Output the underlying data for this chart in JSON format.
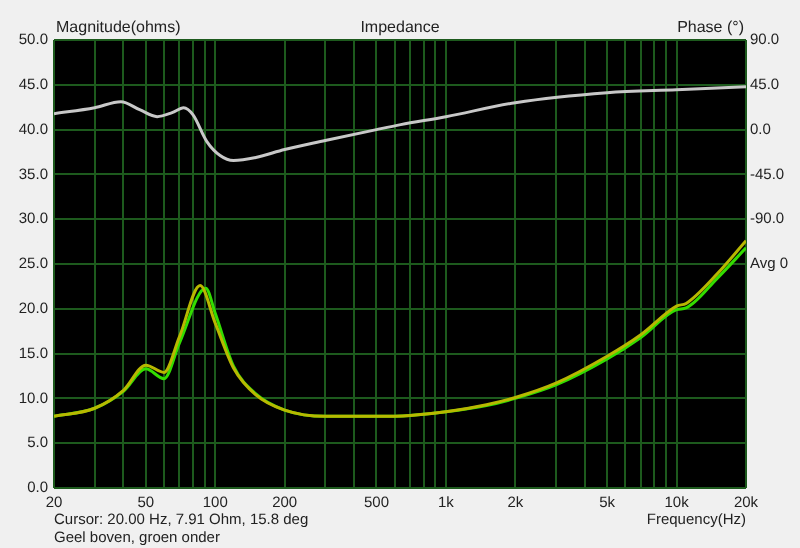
{
  "chart_data": {
    "type": "line",
    "title": "Impedance",
    "xlabel": "Frequency(Hz)",
    "ylabel": "Magnitude(ohms)",
    "y2label": "Phase (°)",
    "annotations": [
      "Cursor: 20.00 Hz, 7.91 Ohm, 15.8 deg",
      "Geel boven, groen onder"
    ],
    "log": "x",
    "grid": true,
    "xlim": [
      20,
      20000
    ],
    "xticks": [
      20,
      {
        "value": 30,
        "label": null
      },
      {
        "value": 40,
        "label": null
      },
      50,
      {
        "value": 60,
        "label": null
      },
      {
        "value": 70,
        "label": null
      },
      {
        "value": 80,
        "label": null
      },
      {
        "value": 90,
        "label": null
      },
      100,
      200,
      {
        "value": 300,
        "label": null
      },
      {
        "value": 400,
        "label": null
      },
      500,
      {
        "value": 600,
        "label": null
      },
      {
        "value": 700,
        "label": null
      },
      {
        "value": 800,
        "label": null
      },
      {
        "value": 900,
        "label": null
      },
      {
        "value": 1000,
        "label": "1k"
      },
      {
        "value": 2000,
        "label": "2k"
      },
      {
        "value": 3000,
        "label": null
      },
      {
        "value": 4000,
        "label": null
      },
      {
        "value": 5000,
        "label": "5k"
      },
      {
        "value": 6000,
        "label": null
      },
      {
        "value": 7000,
        "label": null
      },
      {
        "value": 8000,
        "label": null
      },
      {
        "value": 9000,
        "label": null
      },
      {
        "value": 10000,
        "label": "10k"
      },
      {
        "value": 20000,
        "label": "20k"
      }
    ],
    "ylim": [
      0,
      50
    ],
    "yticks": [
      {
        "value": 0,
        "label": "0.0"
      },
      {
        "value": 5,
        "label": "5.0"
      },
      {
        "value": 10,
        "label": "10.0"
      },
      {
        "value": 15,
        "label": "15.0"
      },
      {
        "value": 20,
        "label": "20.0"
      },
      {
        "value": 25,
        "label": "25.0"
      },
      {
        "value": 30,
        "label": "30.0"
      },
      {
        "value": 35,
        "label": "35.0"
      },
      {
        "value": 40,
        "label": "40.0"
      },
      {
        "value": 45,
        "label": "45.0"
      },
      {
        "value": 50,
        "label": "50.0"
      }
    ],
    "y2lim": [
      -360,
      90
    ],
    "y2ticks": [
      {
        "value": -135,
        "label": "Avg 0"
      },
      {
        "value": -90,
        "label": "-90.0"
      },
      {
        "value": -45,
        "label": "-45.0"
      },
      {
        "value": 0,
        "label": "0.0"
      },
      {
        "value": 45,
        "label": "45.0"
      },
      {
        "value": 90,
        "label": "90.0"
      }
    ],
    "series": [
      {
        "color": "#b8b800",
        "x": [
          20,
          30,
          40,
          50,
          60,
          70,
          86,
          100,
          120,
          150,
          200,
          300,
          500,
          700,
          1000,
          1500,
          2000,
          3000,
          5000,
          7000,
          10000,
          11000,
          15000,
          20000
        ],
        "values": [
          8.0,
          8.9,
          10.9,
          13.7,
          12.9,
          16.9,
          22.6,
          18.4,
          13.4,
          10.4,
          8.7,
          8.0,
          8.0,
          8.1,
          8.5,
          9.3,
          10.1,
          11.7,
          14.7,
          17.1,
          20.3,
          20.6,
          23.9,
          27.6
        ]
      },
      {
        "color": "#33dd00",
        "x": [
          20,
          30,
          40,
          50,
          60,
          70,
          91,
          100,
          120,
          150,
          200,
          300,
          500,
          700,
          1000,
          1500,
          2000,
          3000,
          5000,
          7000,
          10000,
          11000,
          15000,
          20000
        ],
        "values": [
          8.0,
          8.9,
          10.8,
          13.3,
          12.2,
          16.2,
          22.3,
          19.5,
          13.6,
          10.5,
          8.7,
          8.0,
          8.0,
          8.1,
          8.5,
          9.2,
          10.0,
          11.5,
          14.4,
          16.8,
          19.9,
          20.1,
          23.4,
          26.8
        ]
      },
      {
        "color": "#c8c8c8",
        "axis": "y2",
        "x": [
          20,
          30,
          39,
          47,
          56,
          65,
          73,
          80,
          92,
          105,
          120,
          150,
          200,
          300,
          500,
          637,
          1000,
          2000,
          5000,
          10000,
          20000
        ],
        "values": [
          16,
          22,
          28,
          20,
          13,
          17,
          22,
          15,
          -12,
          -26,
          -31,
          -28,
          -20,
          -11,
          0,
          5,
          13,
          27,
          37,
          40,
          43
        ]
      }
    ]
  }
}
